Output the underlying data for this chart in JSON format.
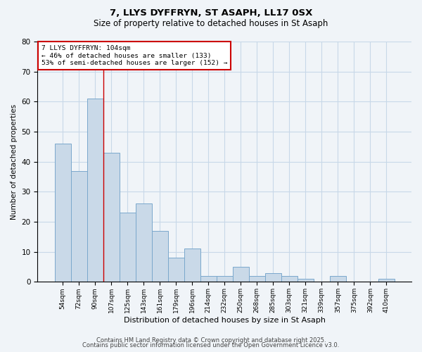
{
  "title1": "7, LLYS DYFFRYN, ST ASAPH, LL17 0SX",
  "title2": "Size of property relative to detached houses in St Asaph",
  "xlabel": "Distribution of detached houses by size in St Asaph",
  "ylabel": "Number of detached properties",
  "categories": [
    "54sqm",
    "72sqm",
    "90sqm",
    "107sqm",
    "125sqm",
    "143sqm",
    "161sqm",
    "179sqm",
    "196sqm",
    "214sqm",
    "232sqm",
    "250sqm",
    "268sqm",
    "285sqm",
    "303sqm",
    "321sqm",
    "339sqm",
    "357sqm",
    "375sqm",
    "392sqm",
    "410sqm"
  ],
  "values": [
    46,
    37,
    61,
    43,
    23,
    26,
    17,
    8,
    11,
    2,
    2,
    5,
    2,
    3,
    2,
    1,
    0,
    2,
    0,
    0,
    1
  ],
  "bar_color": "#c9d9e8",
  "bar_edge_color": "#7aa8cc",
  "red_line_index": 2.5,
  "annotation_text": "7 LLYS DYFFRYN: 104sqm\n← 46% of detached houses are smaller (133)\n53% of semi-detached houses are larger (152) →",
  "annotation_box_color": "#ffffff",
  "annotation_box_edge": "#cc0000",
  "ylim": [
    0,
    80
  ],
  "yticks": [
    0,
    10,
    20,
    30,
    40,
    50,
    60,
    70,
    80
  ],
  "footer1": "Contains HM Land Registry data © Crown copyright and database right 2025.",
  "footer2": "Contains public sector information licensed under the Open Government Licence v3.0.",
  "background_color": "#f0f4f8",
  "grid_color": "#c8d8e8"
}
